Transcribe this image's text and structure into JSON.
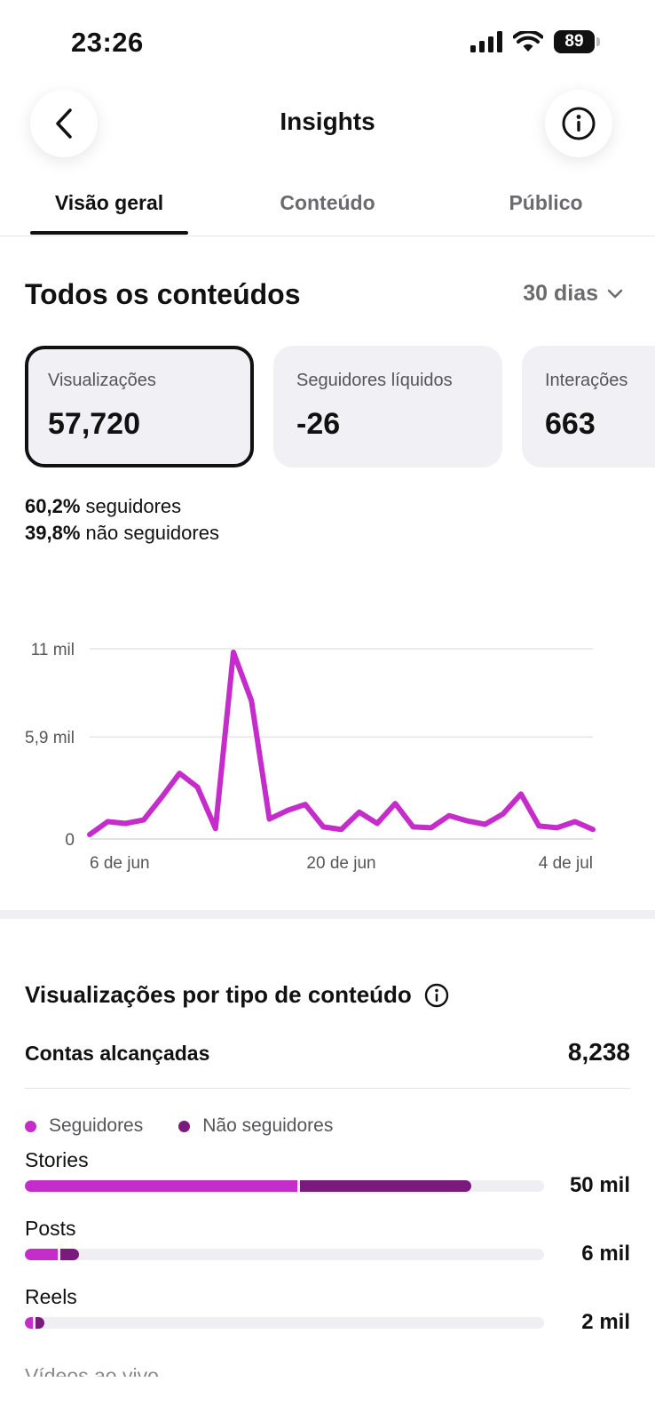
{
  "status": {
    "time": "23:26",
    "battery": "89"
  },
  "nav": {
    "title": "Insights"
  },
  "tabs": [
    {
      "label": "Visão geral",
      "active": true
    },
    {
      "label": "Conteúdo",
      "active": false
    },
    {
      "label": "Público",
      "active": false
    }
  ],
  "overview": {
    "title": "Todos os conteúdos",
    "range": "30 dias",
    "metrics": [
      {
        "label": "Visualizações",
        "value": "57,720",
        "selected": true
      },
      {
        "label": "Seguidores líquidos",
        "value": "-26",
        "selected": false
      },
      {
        "label": "Interações",
        "value": "663",
        "selected": false
      }
    ],
    "followers_pct": "60,2%",
    "followers_text": "seguidores",
    "nonfollowers_pct": "39,8%",
    "nonfollowers_text": "não seguidores"
  },
  "chart_data": {
    "type": "line",
    "ytick_labels": [
      "11 mil",
      "5,9 mil",
      "0"
    ],
    "yticks": [
      11000,
      5900,
      0
    ],
    "ylim": [
      0,
      11000
    ],
    "xtick_labels": [
      "6 de jun",
      "20 de jun",
      "4 de jul"
    ],
    "xtick_index": [
      0,
      14,
      28
    ],
    "line_color": "#c42dc9",
    "values": [
      250,
      1000,
      900,
      1100,
      2400,
      3800,
      3000,
      600,
      10800,
      8000,
      1150,
      1650,
      2000,
      700,
      550,
      1550,
      900,
      2050,
      700,
      650,
      1350,
      1050,
      850,
      1450,
      2600,
      750,
      650,
      1000,
      550
    ]
  },
  "by_type": {
    "title": "Visualizações por tipo de conteúdo",
    "reach_label": "Contas alcançadas",
    "reach_value": "8,238",
    "legend": [
      {
        "label": "Seguidores",
        "color": "#c42dc9"
      },
      {
        "label": "Não seguidores",
        "color": "#7a1a7d"
      }
    ],
    "rows": [
      {
        "label": "Stories",
        "value": "50 mil",
        "followers_fraction": 0.525,
        "nonfollowers_fraction": 0.335
      },
      {
        "label": "Posts",
        "value": "6 mil",
        "followers_fraction": 0.063,
        "nonfollowers_fraction": 0.042
      },
      {
        "label": "Reels",
        "value": "2 mil",
        "followers_fraction": 0.016,
        "nonfollowers_fraction": 0.022
      }
    ],
    "next_label": "Vídeos ao vivo"
  }
}
